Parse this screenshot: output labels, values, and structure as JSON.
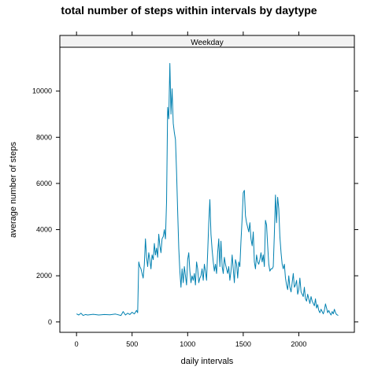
{
  "chart_data": {
    "type": "line",
    "title": "total number of steps within intervals by daytype",
    "xlabel": "daily intervals",
    "ylabel": "average number of steps",
    "panel_label": "Weekday",
    "xlim": [
      -150,
      2500
    ],
    "ylim": [
      -450,
      11900
    ],
    "x_ticks": [
      0,
      500,
      1000,
      1500,
      2000
    ],
    "y_ticks": [
      0,
      2000,
      4000,
      6000,
      8000,
      10000
    ],
    "grid": false,
    "colors": {
      "line": "#0080b0",
      "strip": "#f2f2f2",
      "frame": "#000000"
    },
    "series": [
      {
        "x": [
          0,
          20,
          40,
          60,
          80,
          100,
          150,
          200,
          250,
          300,
          350,
          400,
          420,
          440,
          460,
          480,
          500,
          520,
          540,
          550,
          560,
          570,
          580,
          590,
          600,
          610,
          620,
          630,
          640,
          650,
          660,
          670,
          680,
          690,
          700,
          710,
          720,
          730,
          740,
          750,
          760,
          770,
          780,
          790,
          800,
          810,
          820,
          830,
          840,
          850,
          860,
          870,
          880,
          890,
          900,
          910,
          920,
          930,
          940,
          950,
          960,
          970,
          980,
          990,
          1000,
          1010,
          1020,
          1030,
          1040,
          1050,
          1060,
          1070,
          1080,
          1090,
          1100,
          1110,
          1120,
          1130,
          1140,
          1150,
          1160,
          1170,
          1180,
          1190,
          1200,
          1210,
          1220,
          1230,
          1240,
          1250,
          1260,
          1270,
          1280,
          1290,
          1300,
          1310,
          1320,
          1330,
          1340,
          1350,
          1360,
          1370,
          1380,
          1390,
          1400,
          1410,
          1420,
          1430,
          1440,
          1450,
          1460,
          1470,
          1480,
          1490,
          1500,
          1510,
          1520,
          1530,
          1540,
          1550,
          1560,
          1570,
          1580,
          1590,
          1600,
          1610,
          1620,
          1630,
          1640,
          1650,
          1660,
          1670,
          1680,
          1690,
          1700,
          1710,
          1720,
          1730,
          1740,
          1750,
          1760,
          1770,
          1780,
          1790,
          1800,
          1810,
          1820,
          1830,
          1840,
          1850,
          1860,
          1870,
          1880,
          1890,
          1900,
          1910,
          1920,
          1930,
          1940,
          1950,
          1960,
          1970,
          1980,
          1990,
          2000,
          2010,
          2020,
          2030,
          2040,
          2050,
          2060,
          2070,
          2080,
          2090,
          2100,
          2110,
          2120,
          2130,
          2140,
          2150,
          2160,
          2170,
          2180,
          2190,
          2200,
          2210,
          2220,
          2230,
          2240,
          2250,
          2260,
          2270,
          2280,
          2290,
          2300,
          2310,
          2320,
          2330,
          2340,
          2355
        ],
        "y": [
          350,
          300,
          380,
          280,
          320,
          300,
          330,
          300,
          320,
          310,
          340,
          280,
          450,
          300,
          380,
          320,
          420,
          350,
          500,
          400,
          2600,
          2400,
          2300,
          2100,
          1900,
          2500,
          3600,
          2800,
          2400,
          3000,
          2700,
          2300,
          2900,
          2700,
          3400,
          2900,
          3200,
          2800,
          3800,
          3300,
          3000,
          3600,
          3700,
          4000,
          3600,
          5200,
          9300,
          8800,
          11200,
          9000,
          10100,
          8600,
          8200,
          7900,
          6500,
          4800,
          3200,
          2200,
          1500,
          2300,
          1700,
          2400,
          2000,
          1600,
          2700,
          3000,
          2200,
          1700,
          2000,
          1800,
          2100,
          1600,
          2600,
          2300,
          1700,
          1900,
          2000,
          2300,
          1800,
          2500,
          2200,
          1800,
          3000,
          4300,
          5300,
          3800,
          3100,
          2600,
          2200,
          2500,
          2100,
          3000,
          3600,
          2400,
          3500,
          2400,
          2100,
          2800,
          2500,
          2300,
          2100,
          2400,
          1800,
          2200,
          2900,
          2300,
          1700,
          2700,
          2500,
          1900,
          2600,
          2400,
          3500,
          4500,
          5600,
          5700,
          4600,
          4300,
          4100,
          3900,
          4300,
          3600,
          3300,
          3900,
          2600,
          2300,
          2900,
          2600,
          2500,
          2700,
          3000,
          2600,
          2900,
          2400,
          4400,
          4200,
          3300,
          2500,
          2200,
          2300,
          2300,
          2400,
          3800,
          5500,
          4300,
          5400,
          4900,
          3700,
          3000,
          2500,
          2300,
          2500,
          1900,
          1600,
          1400,
          2000,
          1500,
          1300,
          1700,
          2100,
          1500,
          1600,
          1800,
          1200,
          1400,
          1900,
          1300,
          1200,
          1100,
          1500,
          1000,
          900,
          1200,
          1000,
          800,
          1100,
          900,
          800,
          700,
          1000,
          600,
          750,
          500,
          400,
          550,
          450,
          350,
          500,
          780,
          600,
          400,
          500,
          380,
          300,
          450,
          350,
          550,
          400,
          320,
          280
        ]
      }
    ]
  }
}
